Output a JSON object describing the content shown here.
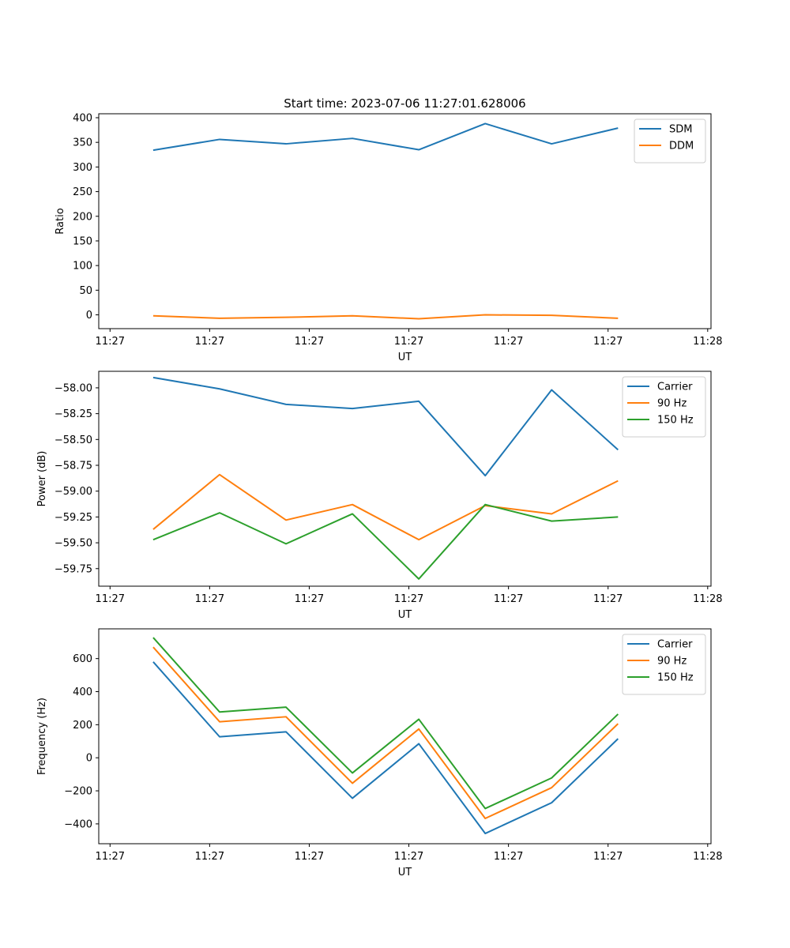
{
  "figure": {
    "title": "Start time: 2023-07-06 11:27:01.628006"
  },
  "chart_data": [
    {
      "type": "line",
      "xlabel": "UT",
      "ylabel": "Ratio",
      "x": [
        1,
        2,
        3,
        4,
        5,
        6,
        7,
        8
      ],
      "xlim": [
        0.18,
        9.4
      ],
      "x_ticks": [
        0.35,
        1.85,
        3.35,
        4.85,
        6.35,
        7.85,
        9.35
      ],
      "x_tick_labels": [
        "11:27",
        "11:27",
        "11:27",
        "11:27",
        "11:27",
        "11:27",
        "11:28"
      ],
      "ylim": [
        -28,
        408
      ],
      "y_ticks": [
        0,
        50,
        100,
        150,
        200,
        250,
        300,
        350,
        400
      ],
      "y_tick_labels": [
        "0",
        "50",
        "100",
        "150",
        "200",
        "250",
        "300",
        "350",
        "400"
      ],
      "legend": "upper-right",
      "series": [
        {
          "name": "SDM",
          "color": "#1f77b4",
          "values": [
            334,
            356,
            347,
            358,
            335,
            388,
            347,
            379
          ]
        },
        {
          "name": "DDM",
          "color": "#ff7f0e",
          "values": [
            -2,
            -7,
            -5,
            -2,
            -8,
            0,
            -1,
            -7
          ]
        }
      ]
    },
    {
      "type": "line",
      "xlabel": "UT",
      "ylabel": "Power (dB)",
      "x": [
        1,
        2,
        3,
        4,
        5,
        6,
        7,
        8
      ],
      "xlim": [
        0.18,
        9.4
      ],
      "x_ticks": [
        0.35,
        1.85,
        3.35,
        4.85,
        6.35,
        7.85,
        9.35
      ],
      "x_tick_labels": [
        "11:27",
        "11:27",
        "11:27",
        "11:27",
        "11:27",
        "11:27",
        "11:28"
      ],
      "ylim": [
        -59.92,
        -57.84
      ],
      "y_ticks": [
        -59.75,
        -59.5,
        -59.25,
        -59.0,
        -58.75,
        -58.5,
        -58.25,
        -58.0
      ],
      "y_tick_labels": [
        "−59.75",
        "−59.50",
        "−59.25",
        "−59.00",
        "−58.75",
        "−58.50",
        "−58.25",
        "−58.00"
      ],
      "legend": "upper-right",
      "series": [
        {
          "name": "Carrier",
          "color": "#1f77b4",
          "values": [
            -57.9,
            -58.01,
            -58.16,
            -58.2,
            -58.13,
            -58.85,
            -58.02,
            -58.6
          ]
        },
        {
          "name": "90 Hz",
          "color": "#ff7f0e",
          "values": [
            -59.37,
            -58.84,
            -59.28,
            -59.13,
            -59.47,
            -59.14,
            -59.22,
            -58.9
          ]
        },
        {
          "name": "150 Hz",
          "color": "#2ca02c",
          "values": [
            -59.47,
            -59.21,
            -59.51,
            -59.22,
            -59.85,
            -59.13,
            -59.29,
            -59.25
          ]
        }
      ]
    },
    {
      "type": "line",
      "xlabel": "UT",
      "ylabel": "Frequency (Hz)",
      "x": [
        1,
        2,
        3,
        4,
        5,
        6,
        7,
        8
      ],
      "xlim": [
        0.18,
        9.4
      ],
      "x_ticks": [
        0.35,
        1.85,
        3.35,
        4.85,
        6.35,
        7.85,
        9.35
      ],
      "x_tick_labels": [
        "11:27",
        "11:27",
        "11:27",
        "11:27",
        "11:27",
        "11:27",
        "11:28"
      ],
      "ylim": [
        -520,
        780
      ],
      "y_ticks": [
        -400,
        -200,
        0,
        200,
        400,
        600
      ],
      "y_tick_labels": [
        "−400",
        "−200",
        "0",
        "200",
        "400",
        "600"
      ],
      "legend": "upper-right",
      "series": [
        {
          "name": "Carrier",
          "color": "#1f77b4",
          "values": [
            580,
            127,
            157,
            -245,
            85,
            -458,
            -272,
            115
          ]
        },
        {
          "name": "90 Hz",
          "color": "#ff7f0e",
          "values": [
            669,
            218,
            248,
            -154,
            174,
            -367,
            -181,
            206
          ]
        },
        {
          "name": "150 Hz",
          "color": "#2ca02c",
          "values": [
            727,
            277,
            306,
            -92,
            233,
            -307,
            -122,
            264
          ]
        }
      ]
    }
  ]
}
